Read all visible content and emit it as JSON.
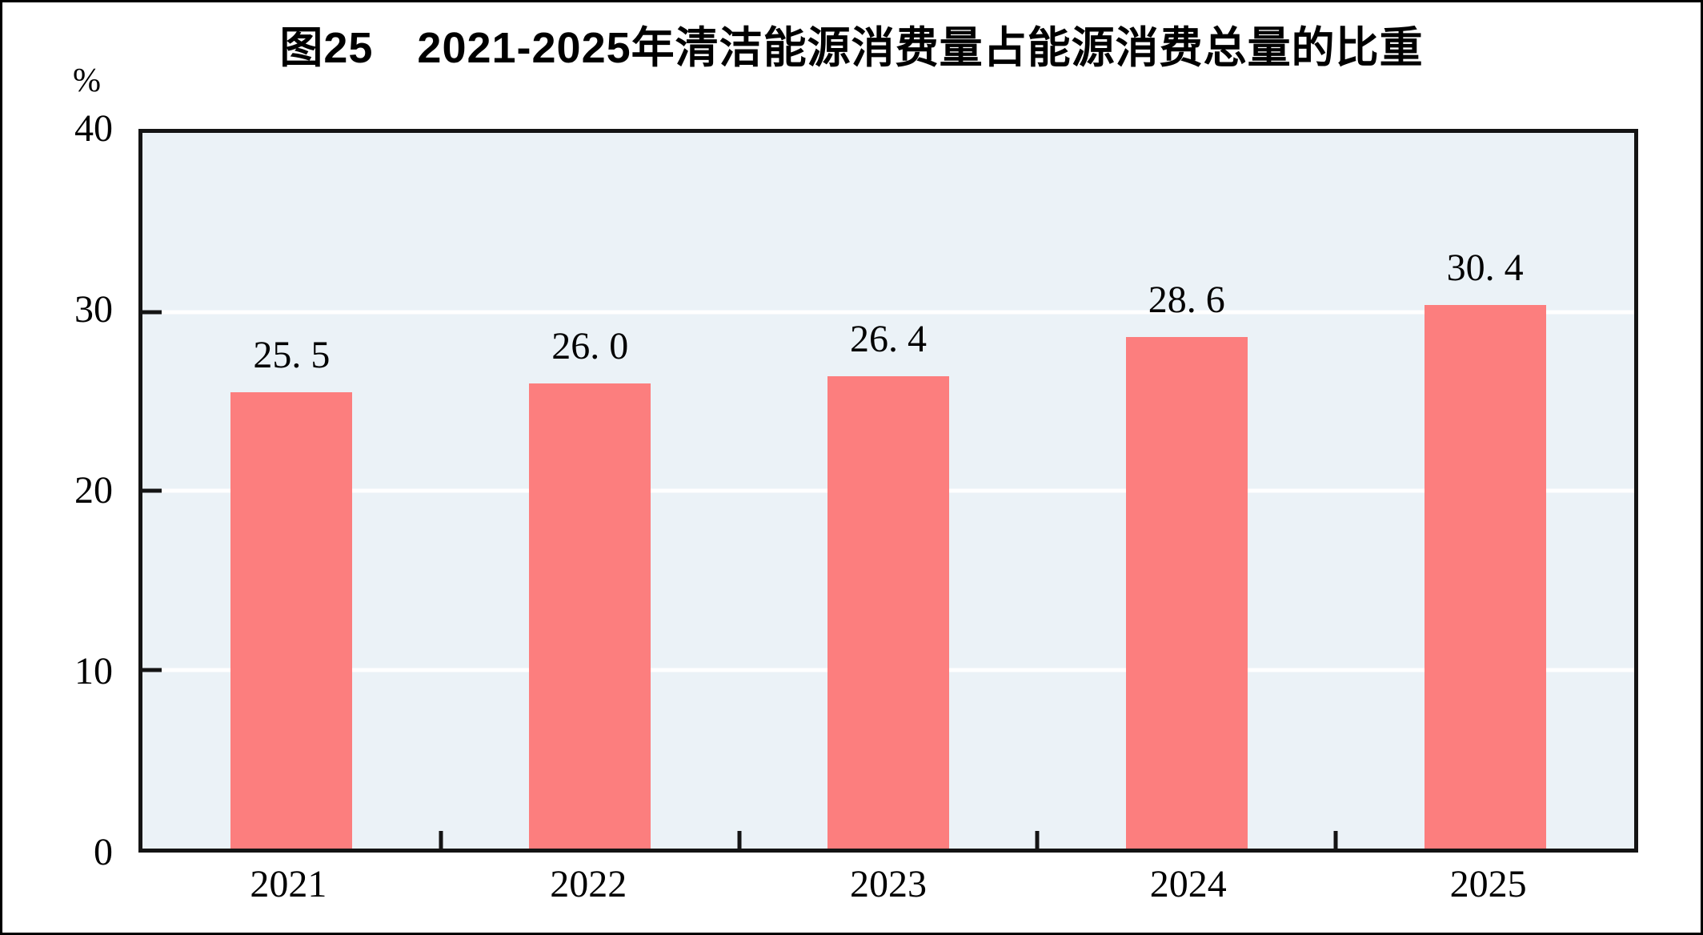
{
  "figure": {
    "title": "图25　2021-2025年清洁能源消费量占能源消费总量的比重",
    "unit_label": "%"
  },
  "chart_data": {
    "type": "bar",
    "title": "图25　2021-2025年清洁能源消费量占能源消费总量的比重",
    "categories": [
      "2021",
      "2022",
      "2023",
      "2024",
      "2025"
    ],
    "values": [
      25.5,
      26.0,
      26.4,
      28.6,
      30.4
    ],
    "value_labels": [
      "25. 5",
      "26. 0",
      "26. 4",
      "28. 6",
      "30. 4"
    ],
    "xlabel": "",
    "ylabel": "%",
    "ylim": [
      0,
      40
    ],
    "yticks": [
      0,
      10,
      20,
      30,
      40
    ],
    "grid": "horizontal",
    "legend_position": "none",
    "colors": {
      "bar": "#FC7E7E",
      "plot_background": "#EBF2F7",
      "gridline": "#FFFFFF",
      "axis": "#141414",
      "text": "#000000"
    }
  }
}
